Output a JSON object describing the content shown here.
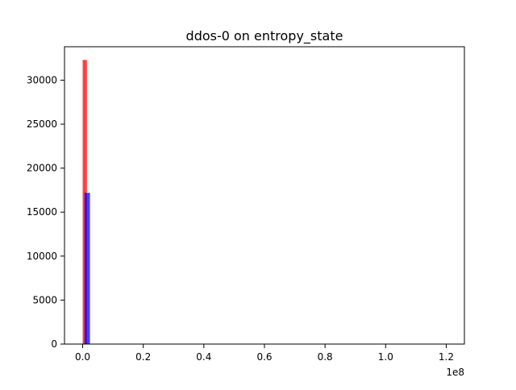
{
  "chart_data": {
    "type": "bar",
    "title": "ddos-0 on entropy_state",
    "xlabel": "",
    "ylabel": "",
    "x_offset_label": "1e8",
    "xlim": [
      -0.06,
      1.26
    ],
    "ylim": [
      0,
      33800
    ],
    "x_ticks": [
      0,
      0.2,
      0.4,
      0.6,
      0.8,
      1.0,
      1.2
    ],
    "x_tick_labels": [
      "0.0",
      "0.2",
      "0.4",
      "0.6",
      "0.8",
      "1.0",
      "1.2"
    ],
    "y_ticks": [
      0,
      5000,
      10000,
      15000,
      20000,
      25000,
      30000
    ],
    "y_tick_labels": [
      "0",
      "5000",
      "10000",
      "15000",
      "20000",
      "25000",
      "30000"
    ],
    "grid": false,
    "series": [
      {
        "color": "#ff0000",
        "opacity": 0.75,
        "bins": [
          {
            "x0": 0.0,
            "x1": 0.014,
            "value": 32300
          }
        ]
      },
      {
        "color": "#0000ff",
        "opacity": 0.75,
        "bins": [
          {
            "x0": 0.006,
            "x1": 0.024,
            "value": 17200
          }
        ]
      }
    ]
  }
}
